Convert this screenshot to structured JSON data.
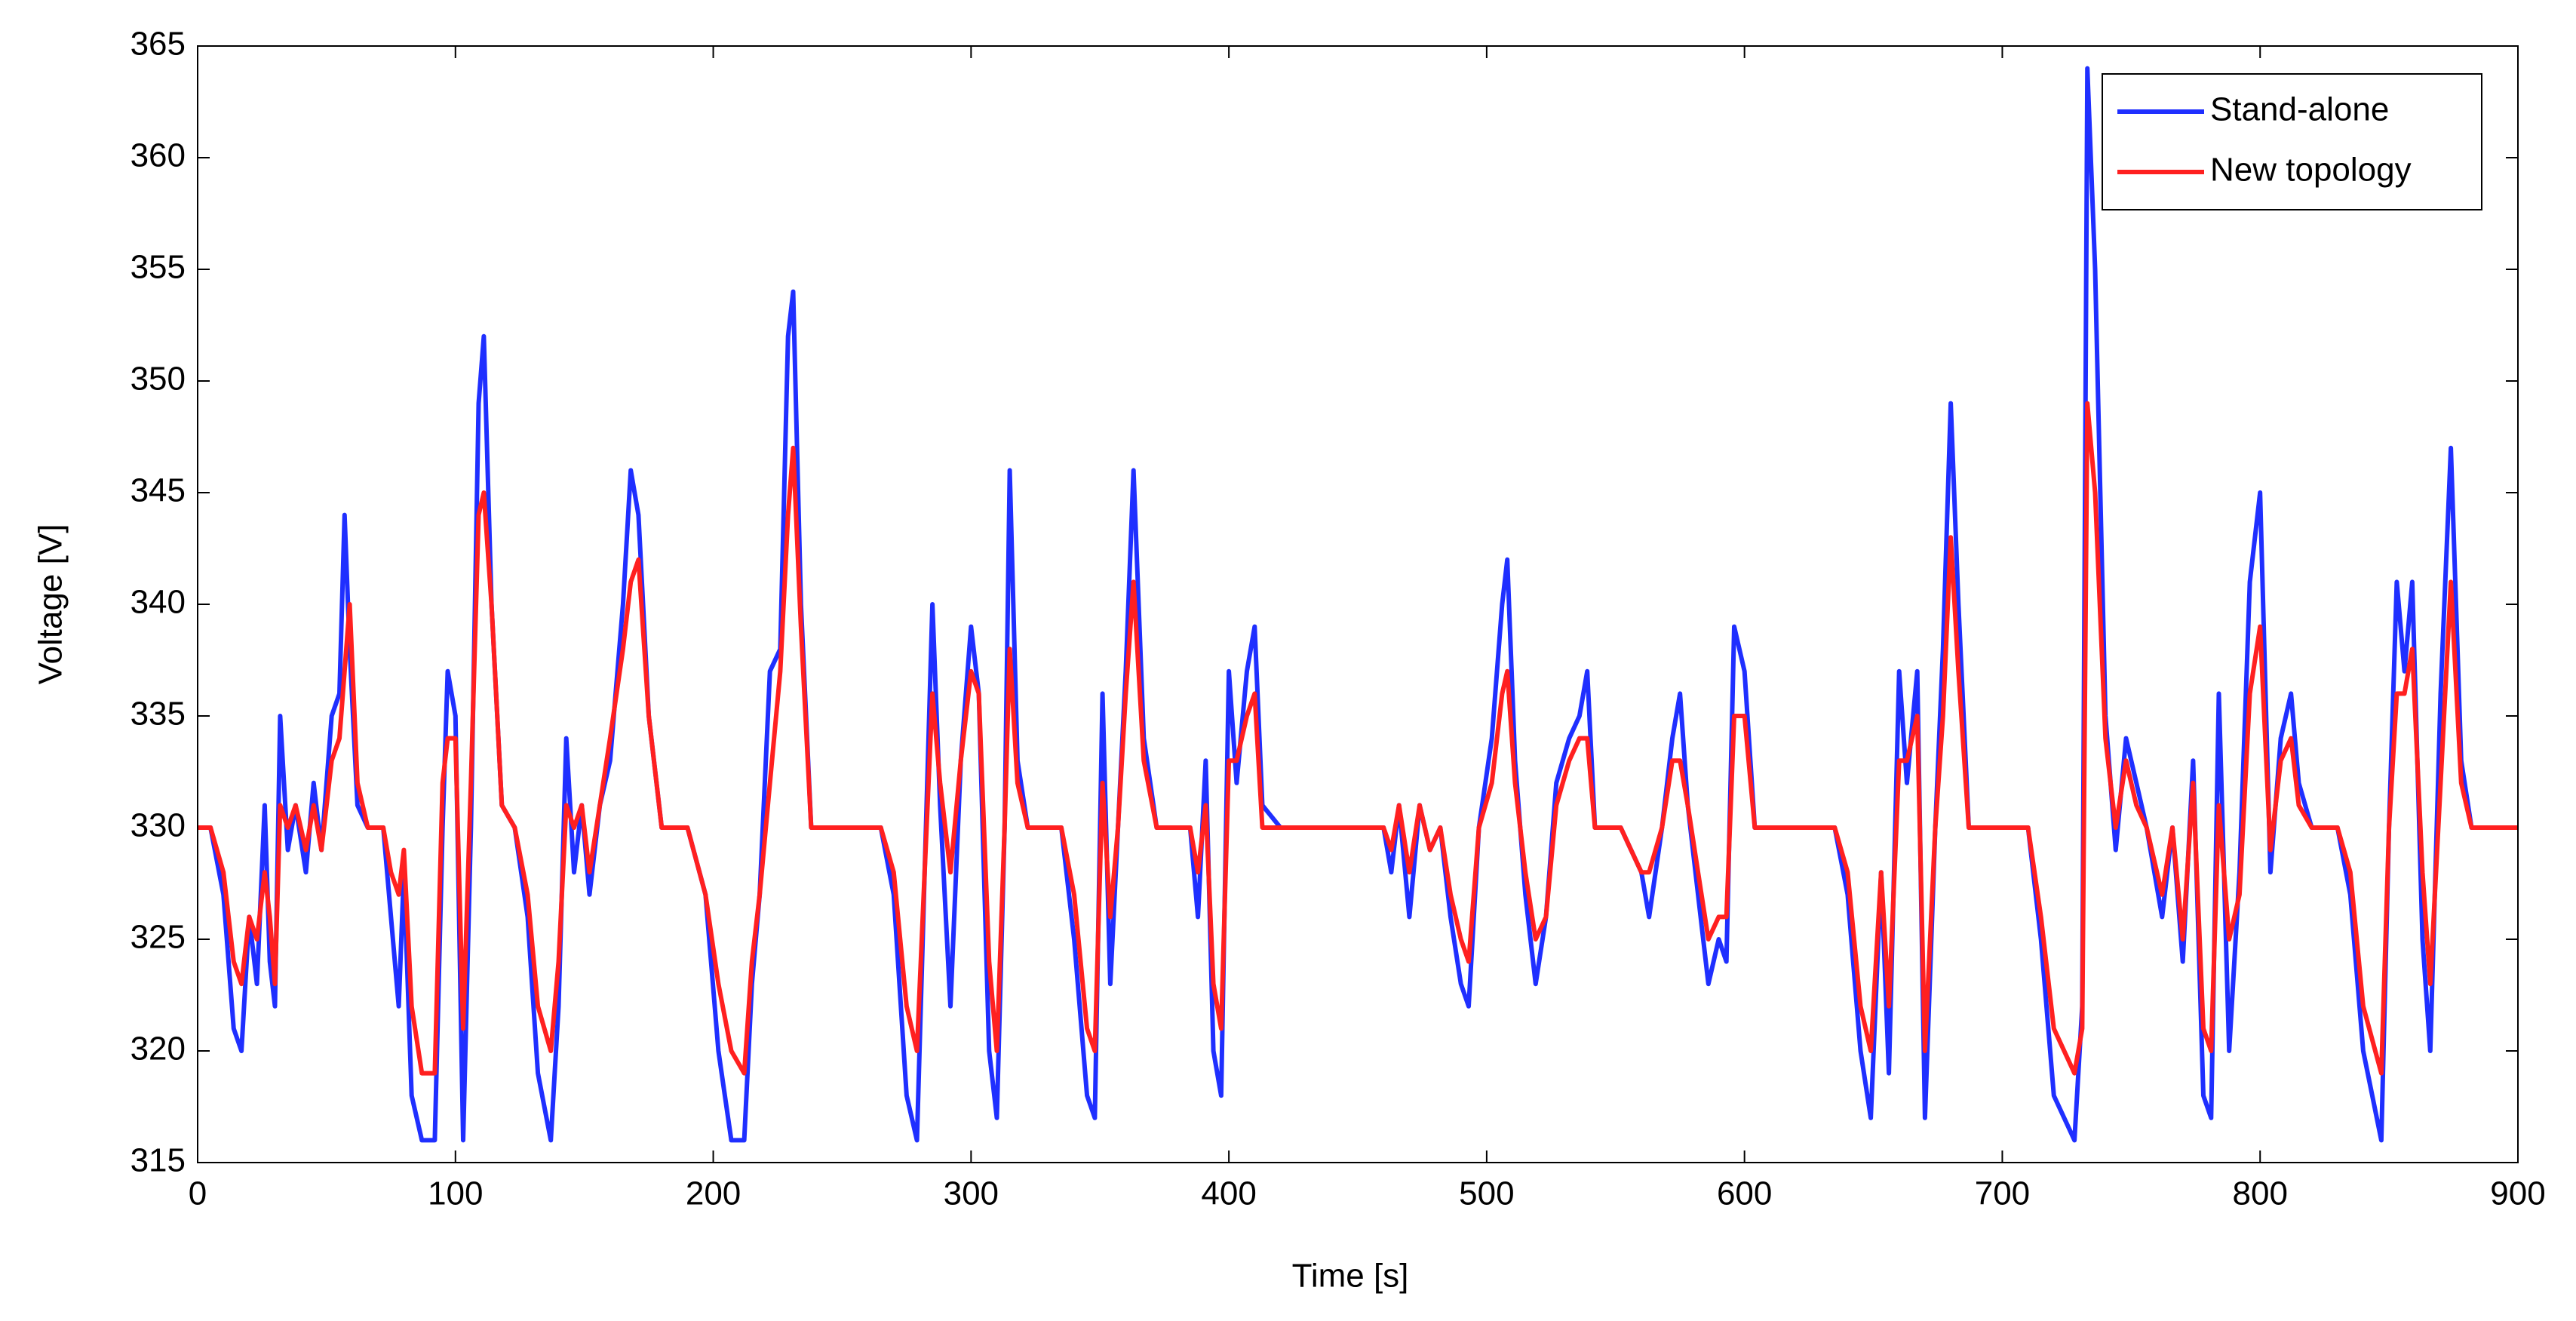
{
  "chart_data": {
    "type": "line",
    "xlabel": "Time  [s]",
    "ylabel": "Voltage [V]",
    "xlim": [
      0,
      900
    ],
    "ylim": [
      315,
      365
    ],
    "xticks": [
      0,
      100,
      200,
      300,
      400,
      500,
      600,
      700,
      800,
      900
    ],
    "yticks": [
      315,
      320,
      325,
      330,
      335,
      340,
      345,
      350,
      355,
      360,
      365
    ],
    "grid": false,
    "legend": "upper right",
    "x": [
      0,
      5,
      10,
      14,
      17,
      20,
      23,
      26,
      28,
      30,
      32,
      35,
      38,
      42,
      45,
      48,
      52,
      55,
      57,
      59,
      62,
      66,
      72,
      75,
      78,
      80,
      83,
      87,
      92,
      95,
      97,
      100,
      103,
      106,
      109,
      111,
      114,
      118,
      123,
      128,
      132,
      137,
      140,
      143,
      146,
      149,
      152,
      156,
      160,
      165,
      168,
      171,
      175,
      180,
      190,
      197,
      202,
      207,
      212,
      215,
      218,
      222,
      226,
      229,
      231,
      234,
      238,
      245,
      265,
      270,
      275,
      279,
      282,
      285,
      288,
      292,
      296,
      300,
      303,
      307,
      310,
      313,
      315,
      318,
      322,
      335,
      340,
      345,
      348,
      351,
      354,
      357,
      360,
      363,
      367,
      372,
      385,
      388,
      391,
      394,
      397,
      400,
      403,
      407,
      410,
      413,
      420,
      460,
      463,
      466,
      470,
      474,
      478,
      482,
      486,
      490,
      493,
      497,
      502,
      506,
      508,
      511,
      515,
      519,
      523,
      527,
      532,
      536,
      539,
      542,
      546,
      552,
      556,
      560,
      563,
      568,
      572,
      575,
      578,
      582,
      586,
      590,
      593,
      596,
      600,
      604,
      615,
      635,
      640,
      645,
      649,
      653,
      656,
      660,
      663,
      667,
      670,
      674,
      677,
      680,
      683,
      687,
      695,
      710,
      715,
      720,
      728,
      731,
      733,
      736,
      740,
      744,
      748,
      752,
      756,
      762,
      766,
      770,
      774,
      778,
      781,
      784,
      788,
      792,
      796,
      800,
      804,
      808,
      812,
      815,
      820,
      830,
      835,
      840,
      847,
      850,
      853,
      856,
      859,
      863,
      866,
      870,
      874,
      878,
      882,
      900
    ],
    "series": [
      {
        "name": "Stand-alone",
        "color": "#1f2fff",
        "values": [
          330,
          330,
          327,
          321,
          320,
          326,
          323,
          331,
          324,
          322,
          335,
          329,
          331,
          328,
          332,
          329,
          335,
          336,
          344,
          338,
          331,
          330,
          330,
          326,
          322,
          328,
          318,
          316,
          316,
          330,
          337,
          335,
          316,
          330,
          349,
          352,
          340,
          331,
          330,
          326,
          319,
          316,
          322,
          334,
          328,
          331,
          327,
          331,
          333,
          340,
          346,
          344,
          335,
          330,
          330,
          327,
          320,
          316,
          316,
          323,
          327,
          337,
          338,
          352,
          354,
          340,
          330,
          330,
          330,
          327,
          318,
          316,
          328,
          340,
          331,
          322,
          333,
          339,
          336,
          320,
          317,
          330,
          346,
          333,
          330,
          330,
          325,
          318,
          317,
          336,
          323,
          330,
          337,
          346,
          334,
          330,
          330,
          326,
          333,
          320,
          318,
          337,
          332,
          337,
          339,
          331,
          330,
          330,
          328,
          331,
          326,
          331,
          329,
          330,
          326,
          323,
          322,
          330,
          334,
          340,
          342,
          333,
          327,
          323,
          326,
          332,
          334,
          335,
          337,
          330,
          330,
          330,
          329,
          328,
          326,
          330,
          334,
          336,
          331,
          327,
          323,
          325,
          324,
          339,
          337,
          330,
          330,
          330,
          327,
          320,
          317,
          328,
          319,
          337,
          332,
          337,
          317,
          330,
          338,
          349,
          340,
          330,
          330,
          330,
          325,
          318,
          316,
          322,
          364,
          355,
          335,
          329,
          334,
          332,
          330,
          326,
          330,
          324,
          333,
          318,
          317,
          336,
          320,
          328,
          341,
          345,
          328,
          334,
          336,
          332,
          330,
          330,
          327,
          320,
          316,
          330,
          341,
          337,
          341,
          325,
          320,
          336,
          347,
          333,
          330,
          330
        ]
      },
      {
        "name": "New topology",
        "color": "#ff2020",
        "values": [
          330,
          330,
          328,
          324,
          323,
          326,
          325,
          328,
          326,
          323,
          331,
          330,
          331,
          329,
          331,
          329,
          333,
          334,
          337,
          340,
          332,
          330,
          330,
          328,
          327,
          329,
          322,
          319,
          319,
          332,
          334,
          334,
          321,
          332,
          344,
          345,
          340,
          331,
          330,
          327,
          322,
          320,
          324,
          331,
          330,
          331,
          328,
          331,
          334,
          338,
          341,
          342,
          335,
          330,
          330,
          327,
          323,
          320,
          319,
          324,
          327,
          332,
          337,
          344,
          347,
          339,
          330,
          330,
          330,
          328,
          322,
          320,
          328,
          336,
          332,
          328,
          333,
          337,
          336,
          324,
          320,
          330,
          338,
          332,
          330,
          330,
          327,
          321,
          320,
          332,
          326,
          330,
          336,
          341,
          333,
          330,
          330,
          328,
          331,
          323,
          321,
          333,
          333,
          335,
          336,
          330,
          330,
          330,
          329,
          331,
          328,
          331,
          329,
          330,
          327,
          325,
          324,
          330,
          332,
          336,
          337,
          332,
          328,
          325,
          326,
          331,
          333,
          334,
          334,
          330,
          330,
          330,
          329,
          328,
          328,
          330,
          333,
          333,
          331,
          328,
          325,
          326,
          326,
          335,
          335,
          330,
          330,
          330,
          328,
          322,
          320,
          328,
          322,
          333,
          333,
          335,
          320,
          330,
          335,
          343,
          337,
          330,
          330,
          330,
          326,
          321,
          319,
          321,
          349,
          345,
          334,
          330,
          333,
          331,
          330,
          327,
          330,
          325,
          332,
          321,
          320,
          331,
          325,
          327,
          336,
          339,
          329,
          333,
          334,
          331,
          330,
          330,
          328,
          322,
          319,
          330,
          336,
          336,
          338,
          328,
          323,
          332,
          341,
          332,
          330,
          330
        ]
      }
    ]
  }
}
